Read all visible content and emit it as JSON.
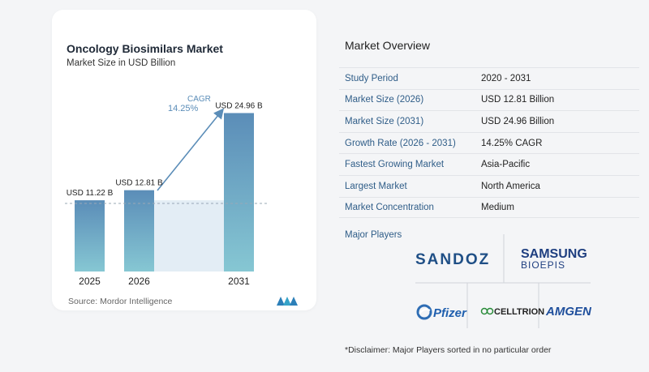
{
  "chart": {
    "title": "Oncology Biosimilars Market",
    "subtitle": "Market Size in USD Billion",
    "source": "Source:  Mordor Intelligence",
    "cagr_label": "CAGR",
    "cagr_value": "14.25%"
  },
  "chart_data": {
    "type": "bar",
    "categories": [
      "2025",
      "2026",
      "2031"
    ],
    "values": [
      11.22,
      12.81,
      24.96
    ],
    "value_labels": [
      "USD 11.22 B",
      "USD 12.81 B",
      "USD 24.96 B"
    ],
    "colors": {
      "bar_top": "#5b8db8",
      "bar_bottom": "#86c7d3",
      "band": "#e3edf5",
      "arrow": "#5b8db8",
      "cagr": "#5b8db8"
    }
  },
  "overview": {
    "title": "Market Overview",
    "rows": [
      {
        "key": "Study Period",
        "value": "2020 - 2031"
      },
      {
        "key": "Market Size (2026)",
        "value": "USD 12.81 Billion"
      },
      {
        "key": "Market Size (2031)",
        "value": "USD 24.96 Billion"
      },
      {
        "key": "Growth Rate (2026 - 2031)",
        "value": "14.25% CAGR"
      },
      {
        "key": "Fastest Growing Market",
        "value": "Asia-Pacific"
      },
      {
        "key": "Largest Market",
        "value": "North America"
      },
      {
        "key": "Market Concentration",
        "value": "Medium"
      }
    ]
  },
  "players": {
    "title": "Major Players",
    "logos": [
      "SANDOZ",
      "SAMSUNG",
      "BIOEPIS",
      "Pfizer",
      "CELLTRION",
      "AMGEN"
    ]
  },
  "disclaimer": "*Disclaimer: Major Players sorted in no particular order"
}
